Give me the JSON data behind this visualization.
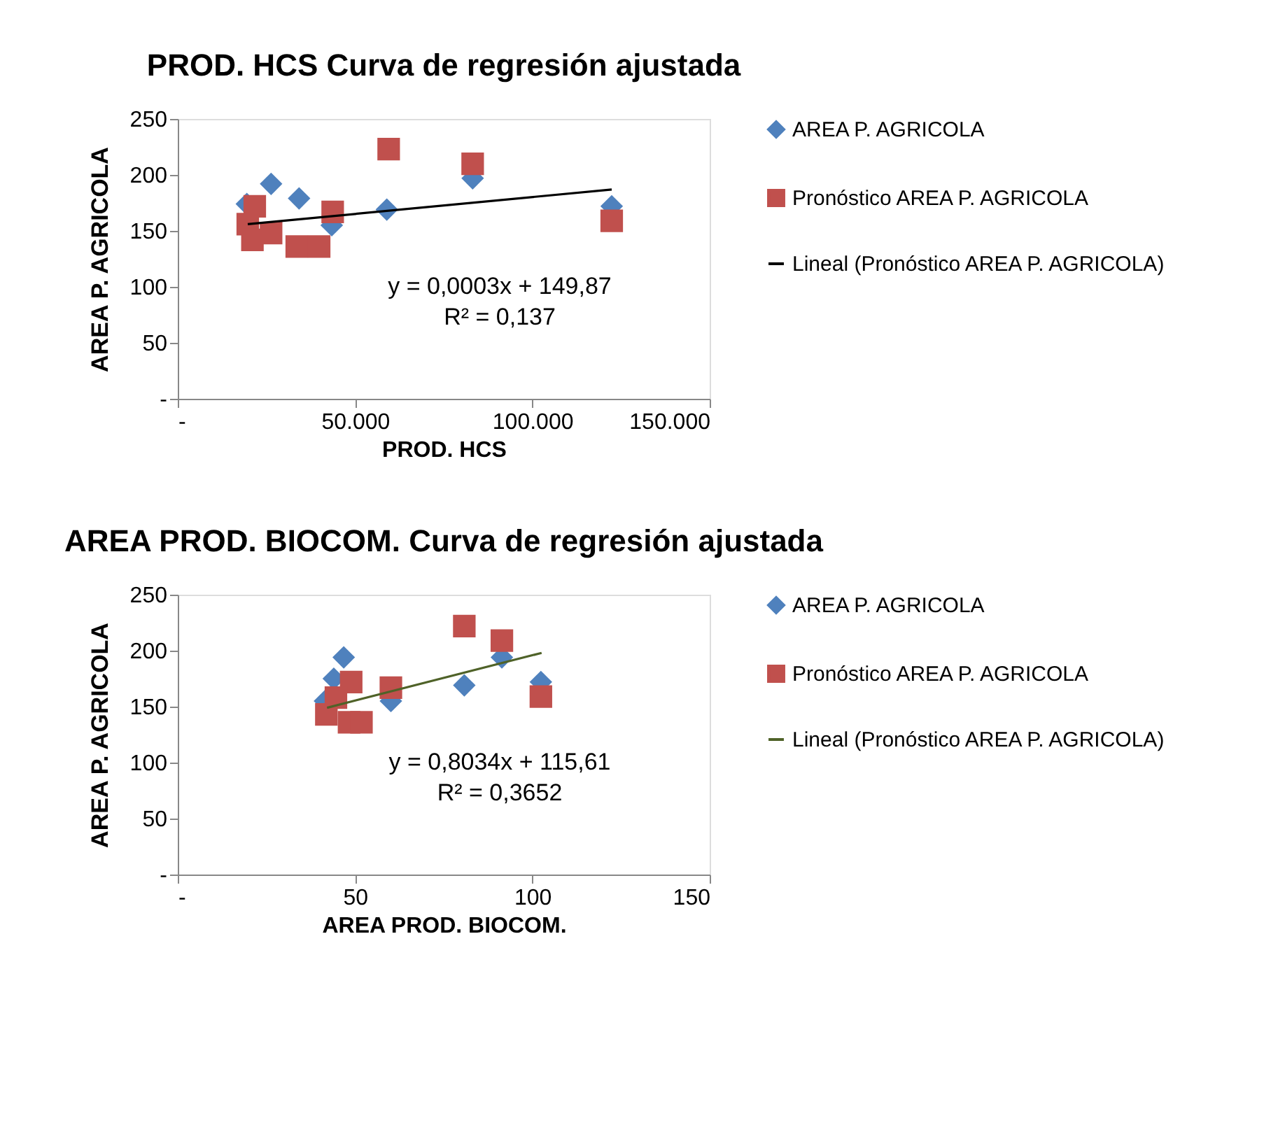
{
  "chart_data": [
    {
      "type": "scatter",
      "title": "PROD. HCS Curva de regresión ajustada",
      "xlabel": "PROD. HCS",
      "ylabel": "AREA P. AGRICOLA",
      "legend": "right",
      "grid": false,
      "xlim": [
        0,
        150000
      ],
      "xticks": [
        {
          "value": 0,
          "label": "-"
        },
        {
          "value": 50000,
          "label": "50.000"
        },
        {
          "value": 100000,
          "label": "100.000"
        },
        {
          "value": 150000,
          "label": "150.000"
        }
      ],
      "ylim": [
        0,
        250
      ],
      "yticks": [
        {
          "value": 0,
          "label": "-"
        },
        50,
        100,
        150,
        200,
        250
      ],
      "annotations": [
        "y = 0,0003x + 149,87",
        "R² = 0,137"
      ],
      "series": [
        {
          "name": "AREA P. AGRICOLA",
          "color": "#4f81bd",
          "marker": "diamond",
          "x": [
            19474,
            26316,
            34211,
            43421,
            58947,
            83158,
            122368
          ],
          "values": [
            174,
            192,
            179,
            155,
            169,
            197,
            172
          ]
        },
        {
          "name": "Pronóstico AREA P. AGRICOLA",
          "color": "#c0504d",
          "marker": "square",
          "x": [
            59474,
            83158,
            122368,
            43684,
            21711,
            19737,
            21053,
            26316,
            33553,
            39868
          ],
          "values": [
            223,
            210,
            159,
            167,
            172,
            156,
            142,
            148,
            136,
            136
          ]
        },
        {
          "name": "Lineal (Pronóstico AREA P. AGRICOLA)",
          "type": "line",
          "color": "#000000",
          "marker": "none",
          "x": [
            19737,
            122368
          ],
          "values": [
            156,
            187
          ]
        }
      ]
    },
    {
      "type": "scatter",
      "title": "AREA PROD. BIOCOM. Curva de regresión ajustada",
      "xlabel": "AREA PROD. BIOCOM.",
      "ylabel": "AREA P. AGRICOLA",
      "legend": "right",
      "grid": false,
      "xlim": [
        0,
        150
      ],
      "xticks": [
        {
          "value": 0,
          "label": "-"
        },
        50,
        100,
        150
      ],
      "ylim": [
        0,
        250
      ],
      "yticks": [
        {
          "value": 0,
          "label": "-"
        },
        50,
        100,
        150,
        200,
        250
      ],
      "annotations": [
        "y = 0,8034x + 115,61",
        "R² = 0,3652"
      ],
      "series": [
        {
          "name": "AREA P. AGRICOLA",
          "color": "#4f81bd",
          "marker": "diamond",
          "x": [
            46.8,
            44,
            41.5,
            60.1,
            80.8,
            91.4,
            102.4
          ],
          "values": [
            194,
            175,
            155,
            155,
            169,
            194,
            172
          ]
        },
        {
          "name": "Pronóstico AREA P. AGRICOLA",
          "color": "#c0504d",
          "marker": "square",
          "x": [
            80.8,
            91.4,
            102.4,
            60.1,
            48.9,
            44.6,
            41.9,
            48.3,
            51.8
          ],
          "values": [
            222,
            209,
            159,
            167,
            172,
            158,
            143,
            136,
            136
          ]
        },
        {
          "name": "Lineal (Pronóstico AREA P. AGRICOLA)",
          "type": "line",
          "color": "#4f6228",
          "marker": "none",
          "x": [
            42.1,
            102.6
          ],
          "values": [
            149,
            198
          ]
        }
      ]
    }
  ]
}
